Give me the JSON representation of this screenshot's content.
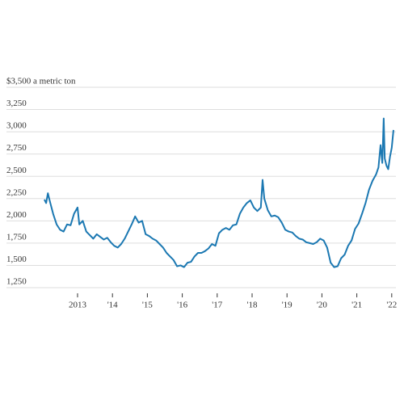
{
  "chart_data": {
    "type": "line",
    "x": [
      2012.05,
      2012.1,
      2012.15,
      2012.2,
      2012.3,
      2012.4,
      2012.5,
      2012.6,
      2012.7,
      2012.8,
      2012.9,
      2013.0,
      2013.05,
      2013.15,
      2013.25,
      2013.35,
      2013.45,
      2013.55,
      2013.65,
      2013.75,
      2013.85,
      2013.95,
      2014.05,
      2014.15,
      2014.25,
      2014.35,
      2014.45,
      2014.55,
      2014.65,
      2014.75,
      2014.85,
      2014.95,
      2015.05,
      2015.15,
      2015.25,
      2015.35,
      2015.45,
      2015.55,
      2015.65,
      2015.75,
      2015.85,
      2015.95,
      2016.05,
      2016.15,
      2016.25,
      2016.35,
      2016.45,
      2016.55,
      2016.65,
      2016.75,
      2016.85,
      2016.95,
      2017.05,
      2017.15,
      2017.25,
      2017.35,
      2017.45,
      2017.55,
      2017.65,
      2017.75,
      2017.85,
      2017.95,
      2018.05,
      2018.15,
      2018.25,
      2018.3,
      2018.35,
      2018.45,
      2018.55,
      2018.65,
      2018.75,
      2018.85,
      2018.95,
      2019.05,
      2019.15,
      2019.25,
      2019.35,
      2019.45,
      2019.55,
      2019.65,
      2019.75,
      2019.85,
      2019.95,
      2020.05,
      2020.15,
      2020.25,
      2020.35,
      2020.45,
      2020.55,
      2020.65,
      2020.75,
      2020.85,
      2020.95,
      2021.05,
      2021.15,
      2021.25,
      2021.35,
      2021.45,
      2021.55,
      2021.62,
      2021.68,
      2021.73,
      2021.77,
      2021.8,
      2021.85,
      2021.9,
      2021.95,
      2022.0,
      2022.05
    ],
    "values": [
      2240,
      2200,
      2310,
      2230,
      2080,
      1960,
      1900,
      1880,
      1960,
      1950,
      2080,
      2150,
      1960,
      2000,
      1880,
      1840,
      1800,
      1850,
      1820,
      1790,
      1810,
      1760,
      1720,
      1700,
      1740,
      1800,
      1880,
      1960,
      2050,
      1980,
      2000,
      1850,
      1830,
      1800,
      1780,
      1740,
      1700,
      1640,
      1600,
      1560,
      1490,
      1500,
      1480,
      1530,
      1540,
      1600,
      1640,
      1640,
      1660,
      1690,
      1740,
      1720,
      1860,
      1900,
      1920,
      1900,
      1950,
      1960,
      2080,
      2150,
      2200,
      2230,
      2150,
      2110,
      2150,
      2460,
      2250,
      2120,
      2050,
      2060,
      2040,
      1980,
      1900,
      1880,
      1870,
      1830,
      1800,
      1790,
      1760,
      1750,
      1740,
      1760,
      1800,
      1780,
      1700,
      1530,
      1480,
      1490,
      1580,
      1620,
      1720,
      1780,
      1910,
      1970,
      2080,
      2200,
      2350,
      2450,
      2520,
      2600,
      2850,
      2650,
      3150,
      2700,
      2620,
      2580,
      2720,
      2820,
      3020
    ],
    "color": "#1b78b2",
    "xlim": [
      2011.82,
      2022.12
    ],
    "xticks": [
      {
        "value": 2013,
        "label": "2013"
      },
      {
        "value": 2014,
        "label": "'14"
      },
      {
        "value": 2015,
        "label": "'15"
      },
      {
        "value": 2016,
        "label": "'16"
      },
      {
        "value": 2017,
        "label": "'17"
      },
      {
        "value": 2018,
        "label": "'18"
      },
      {
        "value": 2019,
        "label": "'19"
      },
      {
        "value": 2020,
        "label": "'20"
      },
      {
        "value": 2021,
        "label": "'21"
      },
      {
        "value": 2022,
        "label": "'22"
      }
    ],
    "ylim": [
      1250,
      3500
    ],
    "yticks": [
      {
        "value": 1250,
        "label": "1,250"
      },
      {
        "value": 1500,
        "label": "1,500"
      },
      {
        "value": 1750,
        "label": "1,750"
      },
      {
        "value": 2000,
        "label": "2,000"
      },
      {
        "value": 2250,
        "label": "2,250"
      },
      {
        "value": 2500,
        "label": "2,500"
      },
      {
        "value": 2750,
        "label": "2,750"
      },
      {
        "value": 3000,
        "label": "3,000"
      },
      {
        "value": 3250,
        "label": "3,250"
      },
      {
        "value": 3500,
        "label": "$3,500 a metric ton"
      }
    ],
    "grid": true
  }
}
